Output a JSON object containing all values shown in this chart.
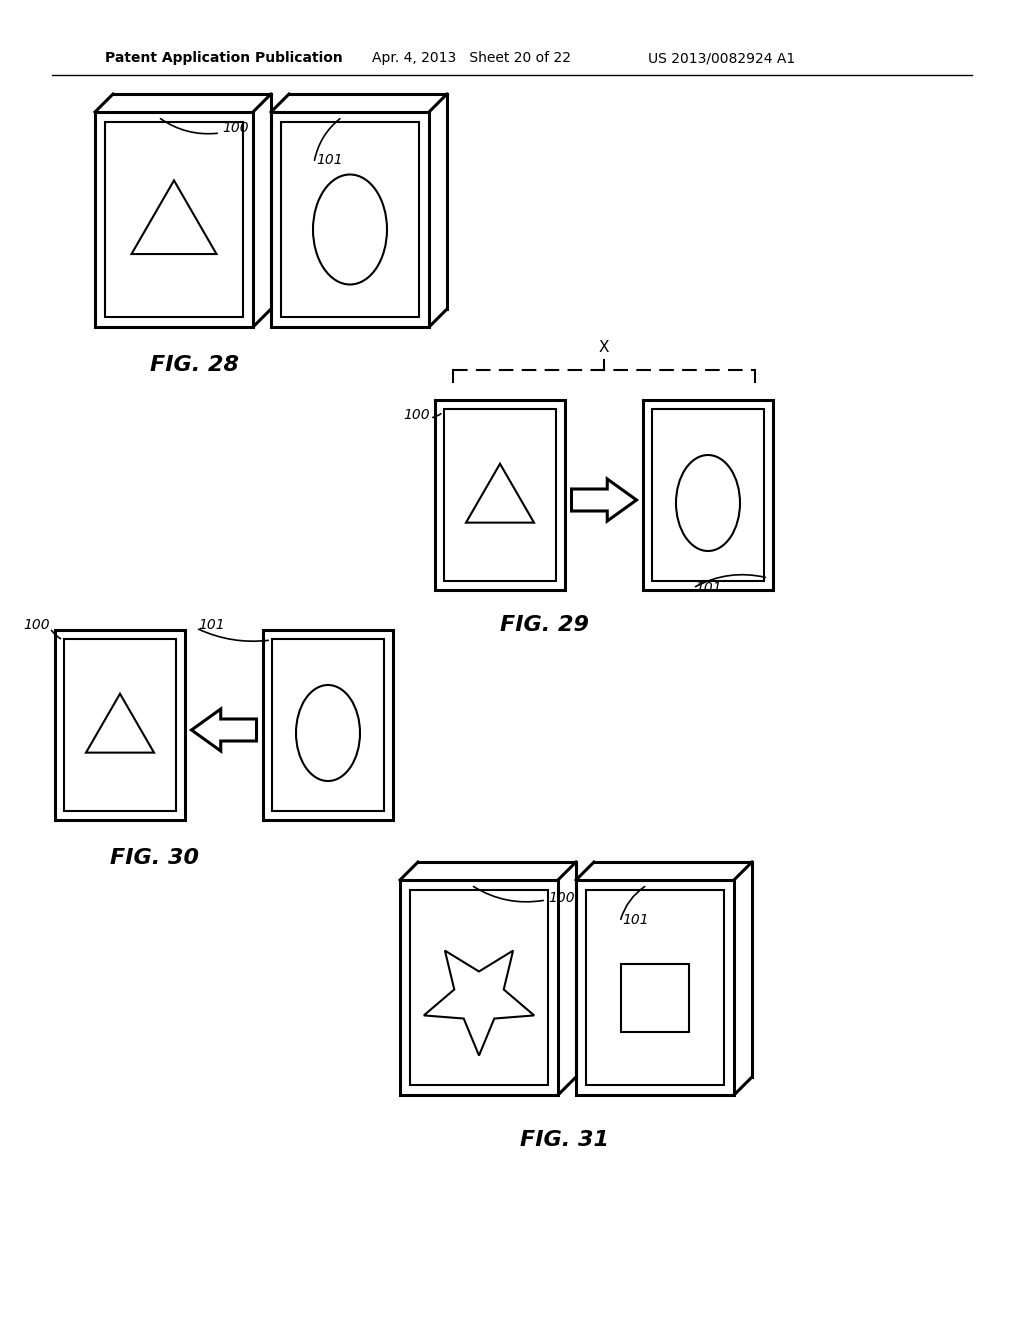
{
  "header_left": "Patent Application Publication",
  "header_mid": "Apr. 4, 2013   Sheet 20 of 22",
  "header_right": "US 2013/0082924 A1",
  "bg_color": "#ffffff",
  "line_color": "#000000",
  "fig28_label": "FIG. 28",
  "fig29_label": "FIG. 29",
  "fig30_label": "FIG. 30",
  "fig31_label": "FIG. 31",
  "label_100": "100",
  "label_101": "101",
  "label_x": "X"
}
